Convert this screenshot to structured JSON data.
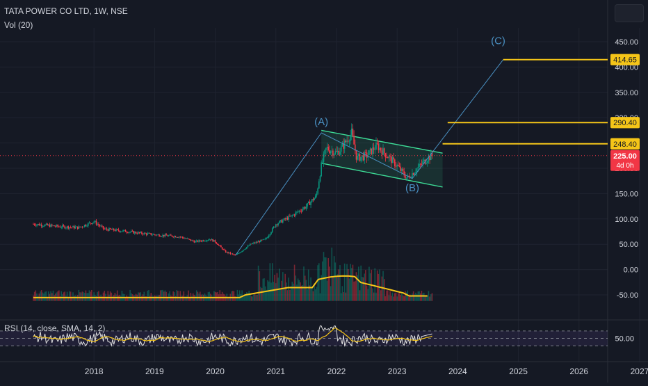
{
  "header": {
    "symbol_title": "TATA POWER CO LTD, 1W, NSE",
    "volume_indicator": "Vol (20)",
    "rsi_indicator": "RSI (14, close, SMA, 14, 2)"
  },
  "colors": {
    "background": "#151924",
    "grid": "#1f2330",
    "text": "#d1d4dc",
    "candle_up": "#089981",
    "candle_down": "#f23645",
    "level_line": "#f5c518",
    "wave_line": "#4a90c2",
    "channel": "#3ddc97",
    "current_price": "#f23645",
    "rsi_line": "#e0e0e0",
    "rsi_ma": "#f5c518",
    "rsi_band": "#7e57c2"
  },
  "chart_data": {
    "type": "candlestick",
    "x_axis": {
      "labels": [
        "2018",
        "2019",
        "2020",
        "2021",
        "2022",
        "2023",
        "2024",
        "2025",
        "2026",
        "2027"
      ]
    },
    "y_axis": {
      "tick_labels": [
        "450.00",
        "400.00",
        "350.00",
        "300.00",
        "250.00",
        "200.00",
        "150.00",
        "100.00",
        "50.00",
        "0.00",
        "-50.00"
      ],
      "range": [
        -62,
        468
      ]
    },
    "price_path": [
      {
        "date": "2017-01",
        "close": 90
      },
      {
        "date": "2017-06",
        "close": 85
      },
      {
        "date": "2017-10",
        "close": 83
      },
      {
        "date": "2018-01",
        "close": 95
      },
      {
        "date": "2018-03",
        "close": 80
      },
      {
        "date": "2018-07",
        "close": 76
      },
      {
        "date": "2018-10",
        "close": 72
      },
      {
        "date": "2019-02",
        "close": 68
      },
      {
        "date": "2019-06",
        "close": 65
      },
      {
        "date": "2019-09",
        "close": 55
      },
      {
        "date": "2019-12",
        "close": 60
      },
      {
        "date": "2020-01",
        "close": 55
      },
      {
        "date": "2020-03",
        "close": 35
      },
      {
        "date": "2020-05",
        "close": 28
      },
      {
        "date": "2020-08",
        "close": 50
      },
      {
        "date": "2020-11",
        "close": 60
      },
      {
        "date": "2021-01",
        "close": 90
      },
      {
        "date": "2021-04",
        "close": 105
      },
      {
        "date": "2021-07",
        "close": 125
      },
      {
        "date": "2021-09",
        "close": 145
      },
      {
        "date": "2021-10",
        "close": 205
      },
      {
        "date": "2021-11",
        "close": 240
      },
      {
        "date": "2022-01",
        "close": 230
      },
      {
        "date": "2022-02",
        "close": 240
      },
      {
        "date": "2022-04",
        "close": 270
      },
      {
        "date": "2022-05",
        "close": 220
      },
      {
        "date": "2022-07",
        "close": 225
      },
      {
        "date": "2022-09",
        "close": 245
      },
      {
        "date": "2022-11",
        "close": 225
      },
      {
        "date": "2023-01",
        "close": 205
      },
      {
        "date": "2023-03",
        "close": 180
      },
      {
        "date": "2023-05",
        "close": 200
      },
      {
        "date": "2023-07",
        "close": 220
      },
      {
        "date": "2023-08",
        "close": 225
      }
    ],
    "horizontal_levels": [
      {
        "label": "414.65",
        "value": 414.65
      },
      {
        "label": "290.40",
        "value": 290.4
      },
      {
        "label": "248.40",
        "value": 248.4
      }
    ],
    "current_price": {
      "label": "225.00",
      "value": 225,
      "countdown": "4d 0h"
    },
    "wave_labels": [
      {
        "text": "(A)",
        "date": "2021-10",
        "value": 285
      },
      {
        "text": "(B)",
        "date": "2023-04",
        "value": 155
      },
      {
        "text": "(C)",
        "date": "2024-09",
        "value": 445
      }
    ],
    "wave_path": [
      {
        "date": "2020-05",
        "value": 28
      },
      {
        "date": "2021-10",
        "value": 270
      },
      {
        "date": "2023-04",
        "value": 180
      },
      {
        "date": "2024-10",
        "value": 414.65
      }
    ],
    "channel": {
      "upper": [
        {
          "date": "2021-10",
          "value": 275
        },
        {
          "date": "2023-10",
          "value": 230
        }
      ],
      "lower": [
        {
          "date": "2021-10",
          "value": 210
        },
        {
          "date": "2023-10",
          "value": 163
        }
      ]
    },
    "rsi": {
      "tick_labels": [
        "50.00"
      ],
      "upper_band": 70,
      "lower_band": 30,
      "mid": 50
    }
  }
}
